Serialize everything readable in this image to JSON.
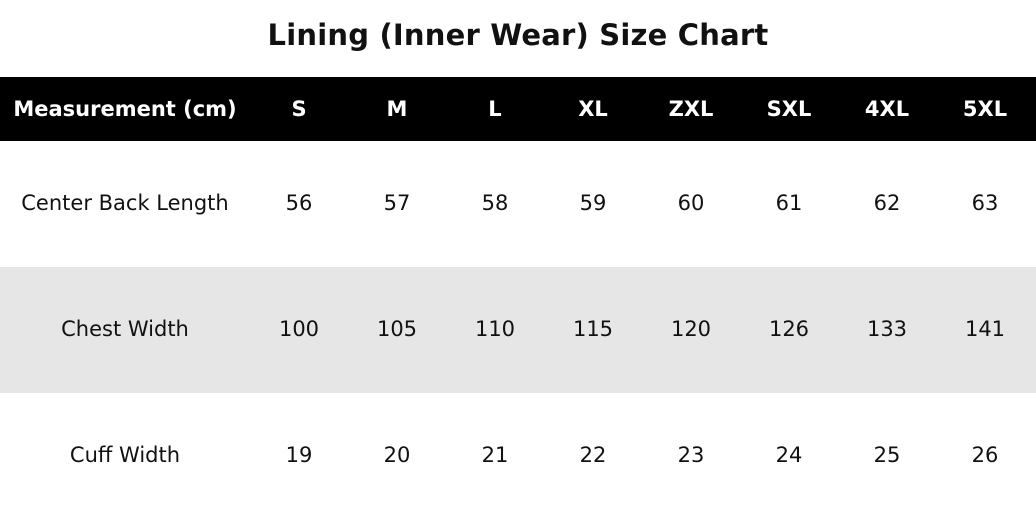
{
  "title": "Lining (Inner Wear) Size Chart",
  "colors": {
    "header_bg": "#000000",
    "header_text": "#ffffff",
    "alt_row_bg": "#e6e6e6"
  },
  "chart_data": {
    "type": "table",
    "title": "Lining (Inner Wear) Size Chart",
    "columns": [
      "Measurement (cm)",
      "S",
      "M",
      "L",
      "XL",
      "ZXL",
      "SXL",
      "4XL",
      "5XL"
    ],
    "rows": [
      [
        "Center Back Length",
        "56",
        "57",
        "58",
        "59",
        "60",
        "61",
        "62",
        "63"
      ],
      [
        "Chest Width",
        "100",
        "105",
        "110",
        "115",
        "120",
        "126",
        "133",
        "141"
      ],
      [
        "Cuff Width",
        "19",
        "20",
        "21",
        "22",
        "23",
        "24",
        "25",
        "26"
      ]
    ]
  }
}
